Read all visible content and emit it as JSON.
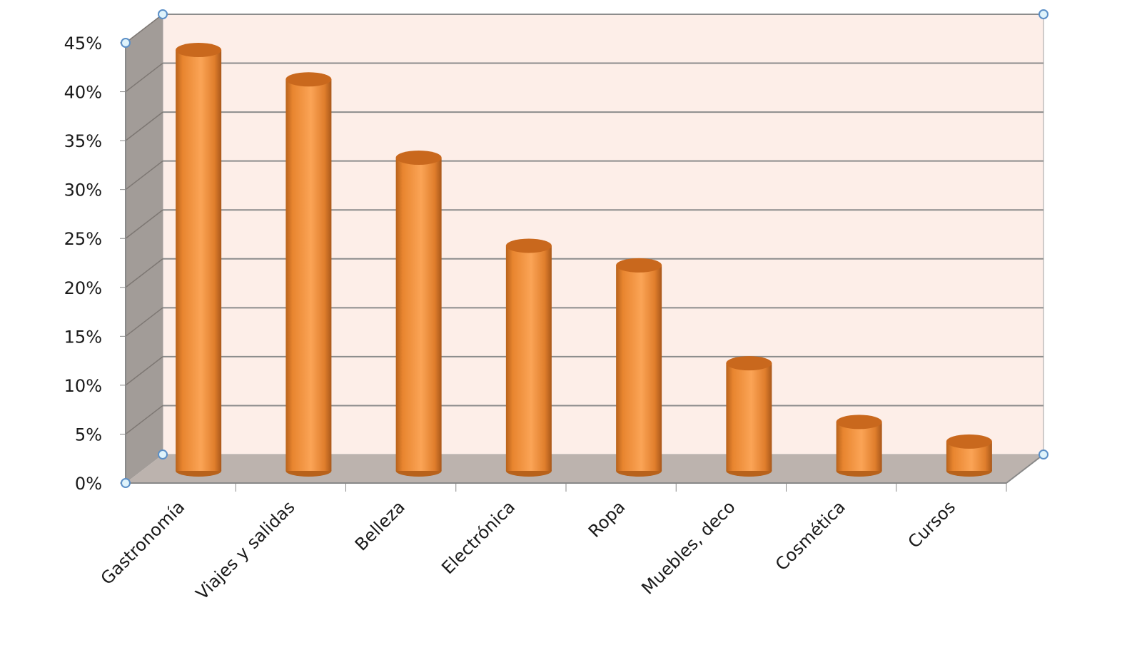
{
  "chart_data": {
    "type": "bar",
    "style": "3d-cylinder",
    "categories": [
      "Gastronomía",
      "Viajes y salidas",
      "Belleza",
      "Electrónica",
      "Ropa",
      "Muebles, deco",
      "Cosmética",
      "Cursos"
    ],
    "values": [
      43,
      40,
      32,
      23,
      21,
      11,
      5,
      3
    ],
    "ylim": [
      0,
      45
    ],
    "yticks": [
      "0%",
      "5%",
      "10%",
      "15%",
      "20%",
      "25%",
      "30%",
      "35%",
      "40%",
      "45%"
    ],
    "title": "",
    "xlabel": "",
    "ylabel": "",
    "grid": true,
    "legend": "none",
    "colors": {
      "bar": "#f79646",
      "bar_dark": "#b8621b",
      "wall": "#fdeee8",
      "side_wall": "#a29c98",
      "floor": "#bcb3ae",
      "grid": "#8c8c8c"
    }
  }
}
